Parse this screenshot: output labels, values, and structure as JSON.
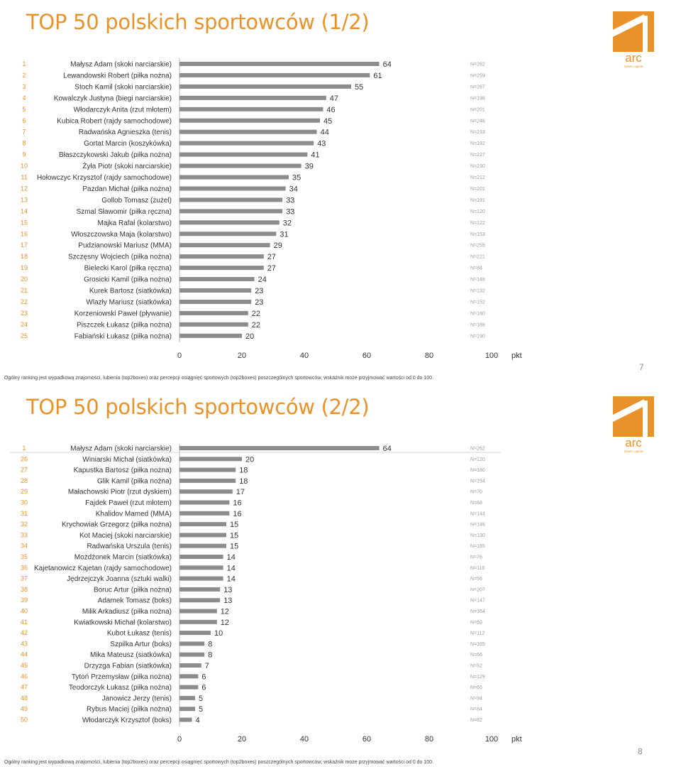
{
  "slides": [
    {
      "title": "TOP 50 polskich sportowców (1/2)",
      "logo": {
        "text": "arc",
        "tagline": "rynek i opinie",
        "color": "#E9922A"
      },
      "footnote": "Ogólny ranking jest wypadkową znajomości, lubienia (top2boxes) oraz percepcji osiągnięć sportowych (top2boxes) poszczególnych sportowców; wskaźnik może przyjmować wartości od 0 do 100.",
      "page_number": "7"
    },
    {
      "title": "TOP 50 polskich sportowców (2/2)",
      "logo": {
        "text": "arc",
        "tagline": "rynek i opinie",
        "color": "#E9922A"
      },
      "footnote": "Ogólny ranking jest wypadkową znajomości, lubienia (top2boxes) oraz percepcji osiągnięć sportowych (top2boxes) poszczególnych sportowców; wskaźnik może przyjmować wartości od 0 do 100.",
      "page_number": "8"
    }
  ],
  "colors": {
    "accent": "#E9922A",
    "bar": "#8C8C8C",
    "text": "#333333",
    "n_text": "#9A9A9A"
  },
  "chart_data": [
    {
      "type": "bar",
      "orientation": "horizontal",
      "ranks": [
        "1",
        "2",
        "3",
        "4",
        "5",
        "6",
        "7",
        "8",
        "9",
        "10",
        "11",
        "12",
        "13",
        "14",
        "15",
        "16",
        "17",
        "18",
        "19",
        "20",
        "21",
        "22",
        "23",
        "24",
        "25"
      ],
      "categories": [
        "Małysz Adam (skoki narciarskie)",
        "Lewandowski Robert (piłka nożna)",
        "Stoch Kamil (skoki narciarskie)",
        "Kowalczyk Justyna (biegi narciarskie)",
        "Włodarczyk Anita (rzut młotem)",
        "Kubica Robert (rajdy samochodowe)",
        "Radwańska Agnieszka (tenis)",
        "Gortat Marcin (koszykówka)",
        "Błaszczykowski Jakub (piłka nożna)",
        "Żyła Piotr (skoki narciarskie)",
        "Hołowczyc Krzysztof (rajdy samochodowe)",
        "Pazdan Michał (piłka nożna)",
        "Gollob Tomasz (żużel)",
        "Szmal Sławomir (piłka ręczna)",
        "Majka Rafał (kolarstwo)",
        "Włoszczowska Maja (kolarstwo)",
        "Pudzianowski Mariusz (MMA)",
        "Szczęsny Wojciech (piłka nożna)",
        "Bielecki Karol (piłka ręczna)",
        "Grosicki Kamil (piłka nożna)",
        "Kurek Bartosz (siatkówka)",
        "Wlazły Mariusz (siatkówka)",
        "Korzeniowski Paweł (pływanie)",
        "Piszczek Łukasz (piłka nożna)",
        "Fabiański Łukasz (piłka nożna)"
      ],
      "values": [
        64,
        61,
        55,
        47,
        46,
        45,
        44,
        43,
        41,
        39,
        35,
        34,
        33,
        33,
        32,
        31,
        29,
        27,
        27,
        24,
        23,
        23,
        22,
        22,
        20
      ],
      "n": [
        "N=262",
        "N=259",
        "N=267",
        "N=198",
        "N=201",
        "N=246",
        "N=233",
        "N=192",
        "N=227",
        "N=230",
        "N=212",
        "N=201",
        "N=191",
        "N=120",
        "N=122",
        "N=153",
        "N=255",
        "N=221",
        "N=84",
        "N=146",
        "N=132",
        "N=152",
        "N=160",
        "N=186",
        "N=190"
      ],
      "xticks": [
        "0",
        "20",
        "40",
        "60",
        "80",
        "100"
      ],
      "xlim": [
        0,
        100
      ],
      "xunit": "pkt",
      "grid": false
    },
    {
      "type": "bar",
      "orientation": "horizontal",
      "ranks": [
        "1",
        "26",
        "27",
        "28",
        "29",
        "30",
        "31",
        "32",
        "33",
        "34",
        "35",
        "36",
        "37",
        "38",
        "39",
        "40",
        "41",
        "42",
        "43",
        "44",
        "45",
        "46",
        "47",
        "48",
        "49",
        "50"
      ],
      "categories": [
        "Małysz Adam (skoki narciarskie)",
        "Winiarski Michał (siatkówka)",
        "Kapustka Bartosz (piłka nożna)",
        "Glik Kamil (piłka nożna)",
        "Małachowski Piotr (rzut dyskiem)",
        "Fajdek Paweł (rzut młotem)",
        "Khalidov Mamed (MMA)",
        "Krychowiak Grzegorz (piłka nożna)",
        "Kot Maciej (skoki narciarskie)",
        "Radwańska Urszula (tenis)",
        "Możdżonek Marcin (siatkówka)",
        "Kajetanowicz Kajetan (rajdy samochodowe)",
        "Jędrzejczyk Joanna (sztuki walki)",
        "Boruc Artur (piłka nożna)",
        "Adamek Tomasz (boks)",
        "Milik Arkadiusz (piłka nożna)",
        "Kwiatkowski Michał (kolarstwo)",
        "Kubot Łukasz (tenis)",
        "Szpilka Artur (boks)",
        "Mika Mateusz (siatkówka)",
        "Drzyzga Fabian (siatkówka)",
        "Tytoń Przemysław (piłka nożna)",
        "Teodorczyk Łukasz (piłka nożna)",
        "Janowicz Jerzy (tenis)",
        "Rybus Maciej (piłka nożna)",
        "Włodarczyk Krzysztof (boks)"
      ],
      "values": [
        64,
        20,
        18,
        18,
        17,
        16,
        16,
        15,
        15,
        15,
        14,
        14,
        14,
        13,
        13,
        12,
        12,
        10,
        8,
        8,
        7,
        6,
        6,
        5,
        5,
        4
      ],
      "n": [
        "N=262",
        "N=120",
        "N=180",
        "N=154",
        "N=70",
        "N=68",
        "N=144",
        "N=146",
        "N=130",
        "N=165",
        "N=76",
        "N=116",
        "N=56",
        "N=207",
        "N=147",
        "N=164",
        "N=59",
        "N=112",
        "N=165",
        "N=66",
        "N=52",
        "N=129",
        "N=65",
        "N=94",
        "N=84",
        "N=82"
      ],
      "xticks": [
        "0",
        "20",
        "40",
        "60",
        "80",
        "100"
      ],
      "xlim": [
        0,
        100
      ],
      "xunit": "pkt",
      "grid": false
    }
  ]
}
